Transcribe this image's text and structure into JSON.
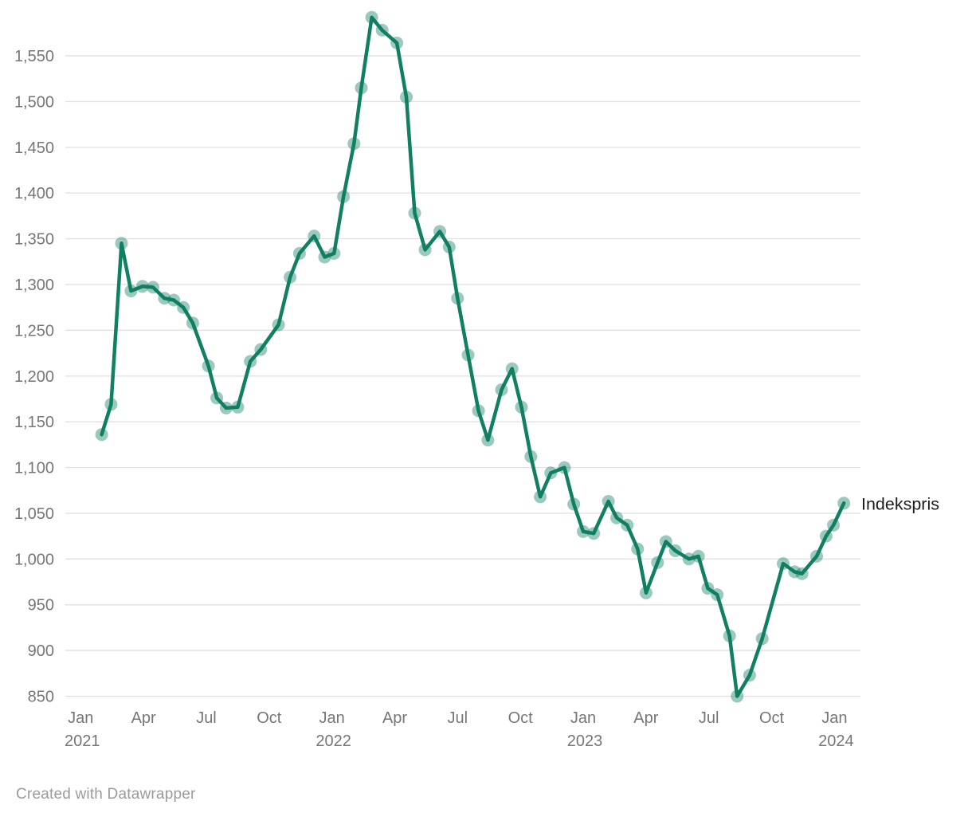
{
  "chart_data": {
    "type": "line",
    "title": "",
    "footer": "Created with Datawrapper",
    "grid": true,
    "legend": "direct-label-at-line-end",
    "colors": {
      "line": "#107f62",
      "marker_fill": "#107f62",
      "marker_opacity": 0.42,
      "grid": "#e2e2e2",
      "axis_text": "#767676",
      "series_label_text": "#1d1d1d",
      "footer_text": "#9b9b9b",
      "background": "#ffffff"
    },
    "y_axis": {
      "ticks": [
        850,
        900,
        950,
        1000,
        1050,
        1100,
        1150,
        1200,
        1250,
        1300,
        1350,
        1400,
        1450,
        1500,
        1550
      ],
      "tick_label_format": "thousands-comma",
      "range": [
        850,
        1600
      ]
    },
    "x_axis": {
      "unit": "months_since_jan_2021",
      "range": [
        -0.75,
        37.25
      ],
      "ticks": [
        {
          "m": 0,
          "label": "Jan",
          "year": "2021"
        },
        {
          "m": 3,
          "label": "Apr",
          "year": ""
        },
        {
          "m": 6,
          "label": "Jul",
          "year": ""
        },
        {
          "m": 9,
          "label": "Oct",
          "year": ""
        },
        {
          "m": 12,
          "label": "Jan",
          "year": "2022"
        },
        {
          "m": 15,
          "label": "Apr",
          "year": ""
        },
        {
          "m": 18,
          "label": "Jul",
          "year": ""
        },
        {
          "m": 21,
          "label": "Oct",
          "year": ""
        },
        {
          "m": 24,
          "label": "Jan",
          "year": "2023"
        },
        {
          "m": 27,
          "label": "Apr",
          "year": ""
        },
        {
          "m": 30,
          "label": "Jul",
          "year": ""
        },
        {
          "m": 33,
          "label": "Oct",
          "year": ""
        },
        {
          "m": 36,
          "label": "Jan",
          "year": "2024"
        }
      ]
    },
    "series": [
      {
        "name": "Indekspris",
        "points": [
          [
            1.0,
            1136
          ],
          [
            1.45,
            1169
          ],
          [
            1.95,
            1345
          ],
          [
            2.4,
            1293
          ],
          [
            2.95,
            1298
          ],
          [
            3.45,
            1297
          ],
          [
            4.0,
            1285
          ],
          [
            4.45,
            1283
          ],
          [
            4.9,
            1275
          ],
          [
            5.35,
            1258
          ],
          [
            6.1,
            1211
          ],
          [
            6.5,
            1176
          ],
          [
            6.95,
            1165
          ],
          [
            7.5,
            1166
          ],
          [
            8.1,
            1216
          ],
          [
            8.6,
            1229
          ],
          [
            9.45,
            1256
          ],
          [
            10.0,
            1308
          ],
          [
            10.45,
            1334
          ],
          [
            11.15,
            1353
          ],
          [
            11.65,
            1330
          ],
          [
            12.1,
            1334
          ],
          [
            12.55,
            1396
          ],
          [
            13.05,
            1454
          ],
          [
            13.4,
            1515
          ],
          [
            13.9,
            1592
          ],
          [
            14.4,
            1578
          ],
          [
            15.1,
            1564
          ],
          [
            15.55,
            1505
          ],
          [
            15.95,
            1378
          ],
          [
            16.45,
            1338
          ],
          [
            17.15,
            1358
          ],
          [
            17.6,
            1341
          ],
          [
            18.0,
            1285
          ],
          [
            18.5,
            1223
          ],
          [
            19.0,
            1162
          ],
          [
            19.45,
            1130
          ],
          [
            20.1,
            1185
          ],
          [
            20.6,
            1208
          ],
          [
            21.05,
            1166
          ],
          [
            21.5,
            1112
          ],
          [
            21.95,
            1068
          ],
          [
            22.45,
            1094
          ],
          [
            23.1,
            1100
          ],
          [
            23.55,
            1060
          ],
          [
            24.0,
            1030
          ],
          [
            24.5,
            1028
          ],
          [
            25.2,
            1063
          ],
          [
            25.6,
            1045
          ],
          [
            26.1,
            1037
          ],
          [
            26.6,
            1011
          ],
          [
            27.0,
            963
          ],
          [
            27.55,
            996
          ],
          [
            27.95,
            1019
          ],
          [
            28.4,
            1009
          ],
          [
            29.05,
            1000
          ],
          [
            29.5,
            1003
          ],
          [
            29.95,
            968
          ],
          [
            30.4,
            961
          ],
          [
            30.99,
            916
          ],
          [
            31.35,
            850
          ],
          [
            31.95,
            873
          ],
          [
            32.55,
            913
          ],
          [
            33.55,
            995
          ],
          [
            34.1,
            986
          ],
          [
            34.45,
            984
          ],
          [
            35.15,
            1003
          ],
          [
            35.6,
            1025
          ],
          [
            35.95,
            1037
          ],
          [
            36.45,
            1061
          ]
        ]
      }
    ]
  }
}
